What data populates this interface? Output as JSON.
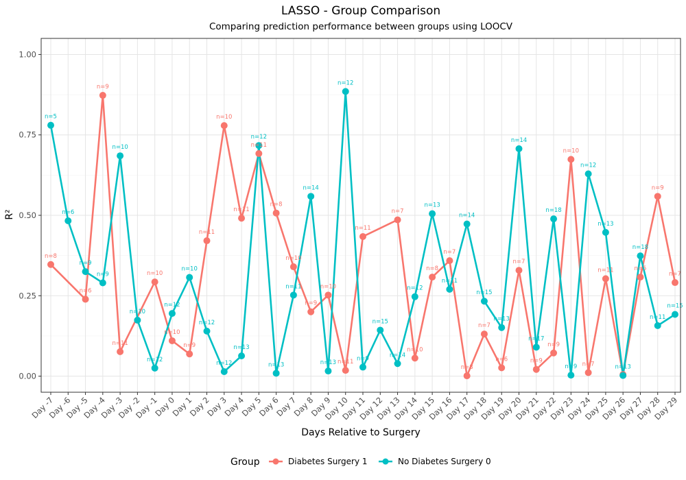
{
  "chart_data": {
    "type": "line",
    "title": "LASSO - Group Comparison",
    "subtitle": "Comparing prediction performance between groups using LOOCV",
    "xlabel": "Days Relative to Surgery",
    "ylabel": "R²",
    "ylim": [
      -0.05,
      1.05
    ],
    "yticks": [
      "0.00",
      "0.25",
      "0.50",
      "0.75",
      "1.00"
    ],
    "ytick_values": [
      0,
      0.25,
      0.5,
      0.75,
      1.0
    ],
    "grid": true,
    "legend_placement": "bottom",
    "legend_title": "Group",
    "categories": [
      "Day -7",
      "Day -6",
      "Day -5",
      "Day -4",
      "Day -3",
      "Day -2",
      "Day -1",
      "Day 0",
      "Day 1",
      "Day 2",
      "Day 3",
      "Day 4",
      "Day 5",
      "Day 6",
      "Day 7",
      "Day 8",
      "Day 9",
      "Day 10",
      "Day 11",
      "Day 12",
      "Day 13",
      "Day 14",
      "Day 15",
      "Day 16",
      "Day 17",
      "Day 18",
      "Day 19",
      "Day 20",
      "Day 21",
      "Day 22",
      "Day 23",
      "Day 24",
      "Day 25",
      "Day 26",
      "Day 27",
      "Day 28",
      "Day 29"
    ],
    "series": [
      {
        "name": "Diabetes Surgery 1",
        "color": "#F8766D",
        "values": [
          0.347,
          null,
          0.239,
          0.873,
          0.076,
          null,
          0.293,
          0.11,
          0.069,
          0.421,
          0.779,
          0.491,
          0.692,
          0.507,
          0.34,
          0.2,
          0.252,
          0.018,
          0.434,
          null,
          0.486,
          0.056,
          0.308,
          0.359,
          0.001,
          0.131,
          0.026,
          0.329,
          0.021,
          0.072,
          0.674,
          0.011,
          0.303,
          0.005,
          0.308,
          0.559,
          0.291
        ],
        "n": [
          "n=8",
          null,
          "n=6",
          "n=9",
          "n=11",
          null,
          "n=10",
          "n=10",
          "n=9",
          "n=11",
          "n=10",
          "n=11",
          "n=11",
          "n=8",
          "n=10",
          "n=9",
          "n=10",
          "n=11",
          "n=11",
          null,
          "n=7",
          "n=10",
          "n=8",
          "n=7",
          "n=8",
          "n=7",
          "n=6",
          "n=7",
          "n=9",
          "n=9",
          "n=10",
          "n=7",
          "n=11",
          null,
          "n=5",
          "n=9",
          "n=7"
        ]
      },
      {
        "name": "No Diabetes Surgery 0",
        "color": "#00BFC4",
        "values": [
          0.78,
          0.483,
          0.325,
          0.29,
          0.685,
          0.174,
          0.025,
          0.195,
          0.307,
          0.14,
          0.014,
          0.063,
          0.717,
          0.009,
          0.252,
          0.559,
          0.016,
          0.885,
          0.028,
          0.143,
          0.039,
          0.247,
          0.505,
          0.27,
          0.473,
          0.233,
          0.151,
          0.707,
          0.09,
          0.489,
          0.003,
          0.629,
          0.447,
          0.002,
          0.374,
          0.157,
          0.192
        ],
        "n": [
          "n=5",
          "n=6",
          "n=9",
          "n=9",
          "n=10",
          "n=10",
          "n=12",
          "n=12",
          "n=10",
          "n=12",
          "n=12",
          "n=13",
          "n=12",
          "n=13",
          "n=11",
          "n=14",
          "n=13",
          "n=12",
          "n=9",
          "n=15",
          "n=14",
          "n=12",
          "n=13",
          "n=11",
          "n=14",
          "n=15",
          "n=13",
          "n=14",
          "n=17",
          "n=18",
          "n=9",
          "n=12",
          "n=13",
          "n=13",
          "n=18",
          "n=11",
          "n=15"
        ]
      }
    ]
  }
}
